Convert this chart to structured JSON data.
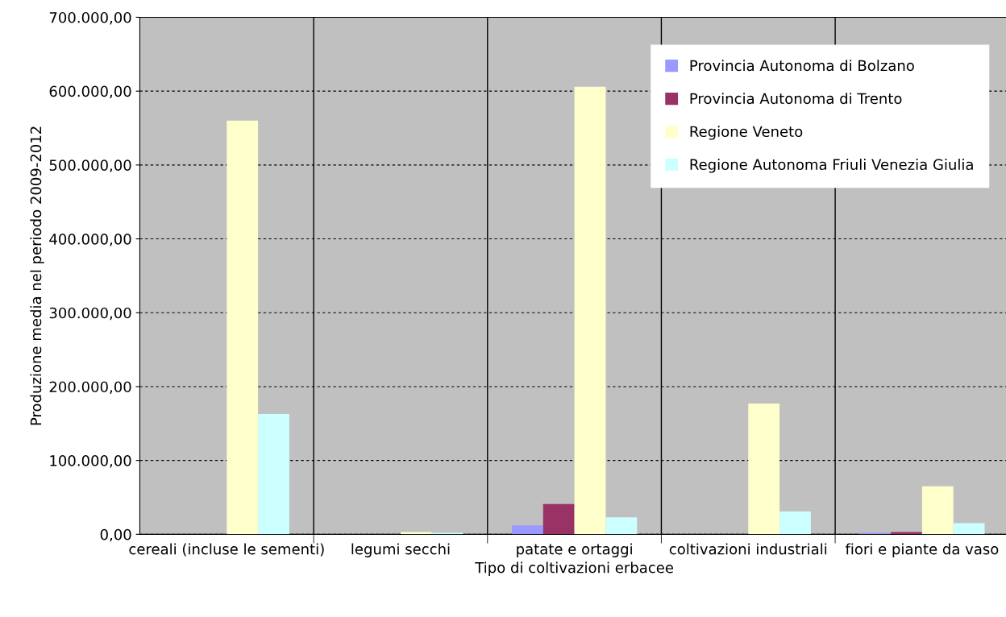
{
  "chart_data": {
    "type": "bar",
    "xlabel": "Tipo di coltivazioni erbacee",
    "ylabel": "Produzione media nel periodo 2009-2012",
    "categories": [
      "cereali (incluse le sementi)",
      "legumi secchi",
      "patate e ortaggi",
      "coltivazioni industriali",
      "fiori e piante da vaso"
    ],
    "series": [
      {
        "name": "Provincia Autonoma di Bolzano",
        "color": "#9999ff",
        "values": [
          0,
          0,
          12000,
          0,
          2000
        ]
      },
      {
        "name": "Provincia Autonoma di Trento",
        "color": "#993366",
        "values": [
          0,
          0,
          41000,
          0,
          3000
        ]
      },
      {
        "name": "Regione Veneto",
        "color": "#ffffcc",
        "values": [
          560000,
          3000,
          606000,
          177000,
          65000
        ]
      },
      {
        "name": "Regione Autonoma Friuli Venezia Giulia",
        "color": "#ccffff",
        "values": [
          163000,
          2000,
          23000,
          31000,
          15000
        ]
      }
    ],
    "ylim": [
      0,
      700000
    ],
    "yticks": [
      {
        "value": 0,
        "label": "0,00"
      },
      {
        "value": 100000,
        "label": "100.000,00"
      },
      {
        "value": 200000,
        "label": "200.000,00"
      },
      {
        "value": 300000,
        "label": "300.000,00"
      },
      {
        "value": 400000,
        "label": "400.000,00"
      },
      {
        "value": 500000,
        "label": "500.000,00"
      },
      {
        "value": 600000,
        "label": "600.000,00"
      },
      {
        "value": 700000,
        "label": "700.000,00"
      }
    ],
    "grid": true,
    "legend": "top right"
  }
}
